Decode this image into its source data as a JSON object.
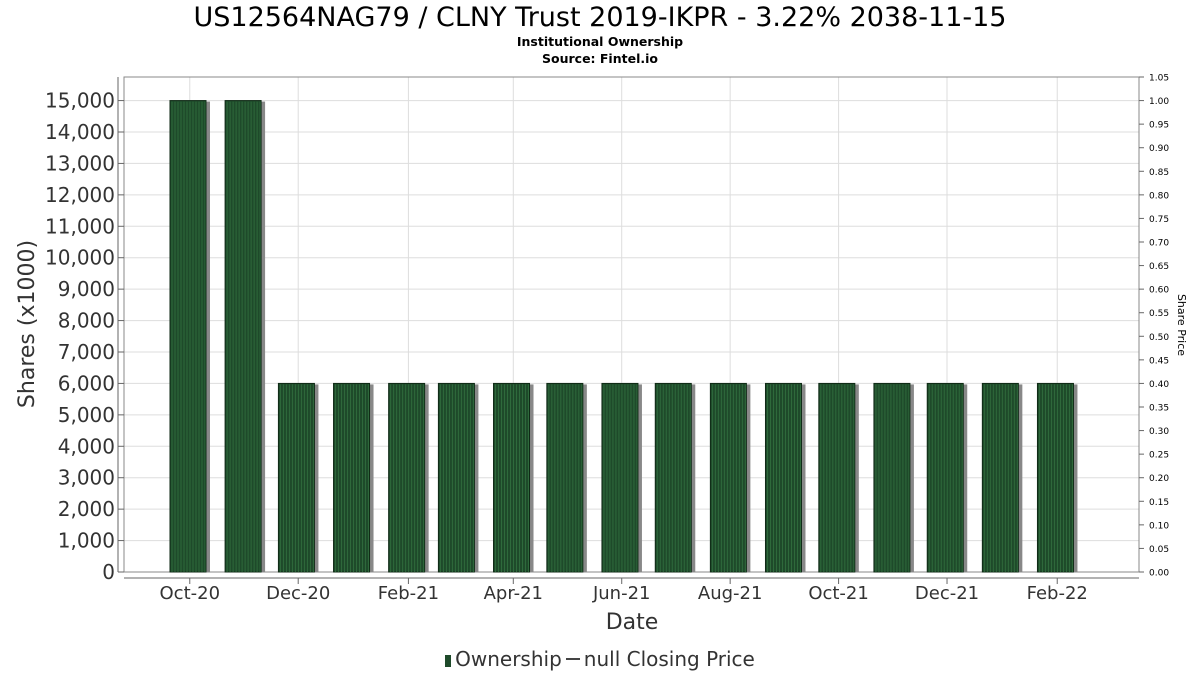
{
  "title": "US12564NAG79 / CLNY Trust 2019-IKPR - 3.22% 2038-11-15",
  "subtitle": "Institutional Ownership",
  "source": "Source: Fintel.io",
  "legend": {
    "ownership": "Ownership",
    "price": "null Closing Price"
  },
  "colors": {
    "bar": "#1e4a2a",
    "bar_shadow": "#888888",
    "grid": "#dddddd",
    "axis": "#666666"
  },
  "chart_data": {
    "type": "bar",
    "xlabel": "Date",
    "ylabel": "Shares (x1000)",
    "y2label": "Share Price",
    "ylim": [
      0,
      15750
    ],
    "y2lim": [
      0,
      1.05
    ],
    "grid": true,
    "legend_position": "bottom",
    "yticks": [
      "0",
      "1,000",
      "2,000",
      "3,000",
      "4,000",
      "5,000",
      "6,000",
      "7,000",
      "8,000",
      "9,000",
      "10,000",
      "11,000",
      "12,000",
      "13,000",
      "14,000",
      "15,000"
    ],
    "y2ticks": [
      "0.00",
      "0.05",
      "0.10",
      "0.15",
      "0.20",
      "0.25",
      "0.30",
      "0.35",
      "0.40",
      "0.45",
      "0.50",
      "0.55",
      "0.60",
      "0.65",
      "0.70",
      "0.75",
      "0.80",
      "0.85",
      "0.90",
      "0.95",
      "1.00",
      "1.05"
    ],
    "xticks": [
      "Oct-20",
      "Dec-20",
      "Feb-21",
      "Apr-21",
      "Jun-21",
      "Aug-21",
      "Oct-21",
      "Dec-21",
      "Feb-22"
    ],
    "series": [
      {
        "name": "Ownership",
        "x": [
          "2020-09-30",
          "2020-10-31",
          "2020-11-30",
          "2020-12-31",
          "2021-01-31",
          "2021-02-28",
          "2021-03-31",
          "2021-04-30",
          "2021-05-31",
          "2021-06-30",
          "2021-07-31",
          "2021-08-31",
          "2021-09-30",
          "2021-10-31",
          "2021-11-30",
          "2021-12-31",
          "2022-01-31"
        ],
        "values": [
          15000,
          15000,
          6000,
          6000,
          6000,
          6000,
          6000,
          6000,
          6000,
          6000,
          6000,
          6000,
          6000,
          6000,
          6000,
          6000,
          6000
        ]
      }
    ]
  }
}
